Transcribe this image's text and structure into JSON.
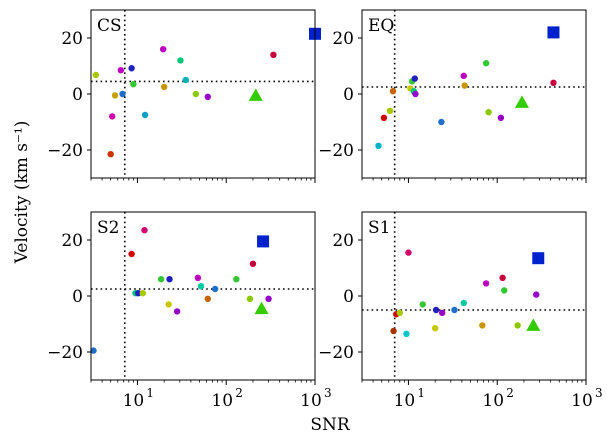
{
  "chart_data": {
    "type": "scatter",
    "xlabel": "SNR",
    "ylabel": "Velocity (km s⁻¹)",
    "xscale": "log",
    "xlim": [
      3,
      1000
    ],
    "ylim": [
      -30,
      30
    ],
    "xticks": [
      {
        "value": 10,
        "label": "10",
        "sup": "1"
      },
      {
        "value": 100,
        "label": "10",
        "sup": "2"
      },
      {
        "value": 1000,
        "label": "10",
        "sup": "3"
      }
    ],
    "yticks": [
      {
        "value": 20,
        "label": "20"
      },
      {
        "value": 0,
        "label": "0"
      },
      {
        "value": -20,
        "label": "−20"
      }
    ],
    "grid": false,
    "panels": [
      {
        "label": "CS",
        "vline": 7.2,
        "hline": 4.5,
        "points": [
          {
            "x": 3.4,
            "y": 6.8,
            "c": "#a8c800"
          },
          {
            "x": 5.0,
            "y": -21.5,
            "c": "#cc3300"
          },
          {
            "x": 5.2,
            "y": -8.0,
            "c": "#d400aa"
          },
          {
            "x": 5.6,
            "y": -0.5,
            "c": "#c8a000"
          },
          {
            "x": 6.5,
            "y": 8.5,
            "c": "#c000c0"
          },
          {
            "x": 6.8,
            "y": 0.0,
            "c": "#1e6ecc"
          },
          {
            "x": 8.6,
            "y": 9.2,
            "c": "#2020c0"
          },
          {
            "x": 9.0,
            "y": 3.5,
            "c": "#33c833"
          },
          {
            "x": 12.2,
            "y": -7.5,
            "c": "#00a0c8"
          },
          {
            "x": 19.5,
            "y": 16.0,
            "c": "#c000c0"
          },
          {
            "x": 20.0,
            "y": 2.5,
            "c": "#c89600"
          },
          {
            "x": 30.5,
            "y": 12.0,
            "c": "#00c878"
          },
          {
            "x": 35.0,
            "y": 5.0,
            "c": "#00b4b4"
          },
          {
            "x": 45.5,
            "y": 0.0,
            "c": "#8cc800"
          },
          {
            "x": 62.0,
            "y": -1.0,
            "c": "#9600c8"
          },
          {
            "x": 340.0,
            "y": 14.0,
            "c": "#c8003c"
          }
        ],
        "triangle": {
          "x": 215,
          "y": -0.5
        },
        "square": {
          "x": 1000,
          "y": 21.5
        }
      },
      {
        "label": "EQ",
        "vline": 7.0,
        "hline": 2.5,
        "points": [
          {
            "x": 4.6,
            "y": -18.5,
            "c": "#00b4c8"
          },
          {
            "x": 5.3,
            "y": -8.5,
            "c": "#d40000"
          },
          {
            "x": 6.2,
            "y": -6.0,
            "c": "#a8c800"
          },
          {
            "x": 6.7,
            "y": 1.0,
            "c": "#c86400"
          },
          {
            "x": 10.5,
            "y": 2.0,
            "c": "#c8c800"
          },
          {
            "x": 11.0,
            "y": 4.5,
            "c": "#33c833"
          },
          {
            "x": 11.5,
            "y": 1.0,
            "c": "#00c878"
          },
          {
            "x": 11.8,
            "y": 5.5,
            "c": "#2020c0"
          },
          {
            "x": 12.0,
            "y": 0.0,
            "c": "#9600c8"
          },
          {
            "x": 23.5,
            "y": -10.0,
            "c": "#1e6ecc"
          },
          {
            "x": 42.0,
            "y": 6.5,
            "c": "#c000c0"
          },
          {
            "x": 43.0,
            "y": 3.0,
            "c": "#c89600"
          },
          {
            "x": 75.0,
            "y": 11.0,
            "c": "#33c833"
          },
          {
            "x": 80.0,
            "y": -6.5,
            "c": "#8cc800"
          },
          {
            "x": 110.0,
            "y": -8.5,
            "c": "#9600c8"
          },
          {
            "x": 430.0,
            "y": 4.0,
            "c": "#c8003c"
          }
        ],
        "triangle": {
          "x": 190,
          "y": -3.0
        },
        "square": {
          "x": 430,
          "y": 22.0
        }
      },
      {
        "label": "S2",
        "vline": 7.2,
        "hline": 2.5,
        "points": [
          {
            "x": 3.2,
            "y": -19.5,
            "c": "#1e6ecc"
          },
          {
            "x": 8.6,
            "y": 15.0,
            "c": "#d40000"
          },
          {
            "x": 9.5,
            "y": 1.0,
            "c": "#00c878"
          },
          {
            "x": 10.2,
            "y": 1.0,
            "c": "#2020c0"
          },
          {
            "x": 11.5,
            "y": 1.0,
            "c": "#a8c800"
          },
          {
            "x": 12.0,
            "y": 23.5,
            "c": "#d4006e"
          },
          {
            "x": 18.5,
            "y": 6.0,
            "c": "#33c833"
          },
          {
            "x": 23.0,
            "y": 6.0,
            "c": "#2020c0"
          },
          {
            "x": 22.5,
            "y": -3.0,
            "c": "#c8c800"
          },
          {
            "x": 28.0,
            "y": -5.5,
            "c": "#9600c8"
          },
          {
            "x": 48.0,
            "y": 6.5,
            "c": "#c000c0"
          },
          {
            "x": 52.0,
            "y": 3.5,
            "c": "#00c8a0"
          },
          {
            "x": 62.0,
            "y": -1.0,
            "c": "#c86400"
          },
          {
            "x": 75.0,
            "y": 2.5,
            "c": "#1e6ecc"
          },
          {
            "x": 130.0,
            "y": 6.0,
            "c": "#33c833"
          },
          {
            "x": 185.0,
            "y": -1.0,
            "c": "#8cc800"
          },
          {
            "x": 200.0,
            "y": 11.5,
            "c": "#c8003c"
          },
          {
            "x": 300.0,
            "y": -1.0,
            "c": "#9600c8"
          }
        ],
        "triangle": {
          "x": 250,
          "y": -4.5
        },
        "square": {
          "x": 260,
          "y": 19.5
        }
      },
      {
        "label": "S1",
        "vline": 7.0,
        "hline": -5.0,
        "points": [
          {
            "x": 6.8,
            "y": -12.5,
            "c": "#a83200"
          },
          {
            "x": 7.3,
            "y": -6.5,
            "c": "#d40000"
          },
          {
            "x": 8.0,
            "y": -6.0,
            "c": "#a8c800"
          },
          {
            "x": 9.5,
            "y": -13.5,
            "c": "#00c8c8"
          },
          {
            "x": 10.0,
            "y": 15.5,
            "c": "#d4006e"
          },
          {
            "x": 14.5,
            "y": -3.0,
            "c": "#33c833"
          },
          {
            "x": 20.0,
            "y": -11.5,
            "c": "#c8c800"
          },
          {
            "x": 20.5,
            "y": -5.0,
            "c": "#2020c0"
          },
          {
            "x": 24.0,
            "y": -6.0,
            "c": "#9600c8"
          },
          {
            "x": 33.0,
            "y": -5.0,
            "c": "#1e6ecc"
          },
          {
            "x": 42.0,
            "y": -2.5,
            "c": "#00c8a0"
          },
          {
            "x": 68.0,
            "y": -10.5,
            "c": "#c89600"
          },
          {
            "x": 75.0,
            "y": 4.5,
            "c": "#c000c0"
          },
          {
            "x": 115.0,
            "y": 6.5,
            "c": "#c8003c"
          },
          {
            "x": 120.0,
            "y": 2.0,
            "c": "#33c833"
          },
          {
            "x": 170.0,
            "y": -10.5,
            "c": "#8cc800"
          },
          {
            "x": 275.0,
            "y": 0.5,
            "c": "#9600c8"
          }
        ],
        "triangle": {
          "x": 255,
          "y": -10.5
        },
        "square": {
          "x": 290,
          "y": 13.5
        }
      }
    ],
    "triangle_color": "#33cc00",
    "square_color": "#0022cc"
  }
}
